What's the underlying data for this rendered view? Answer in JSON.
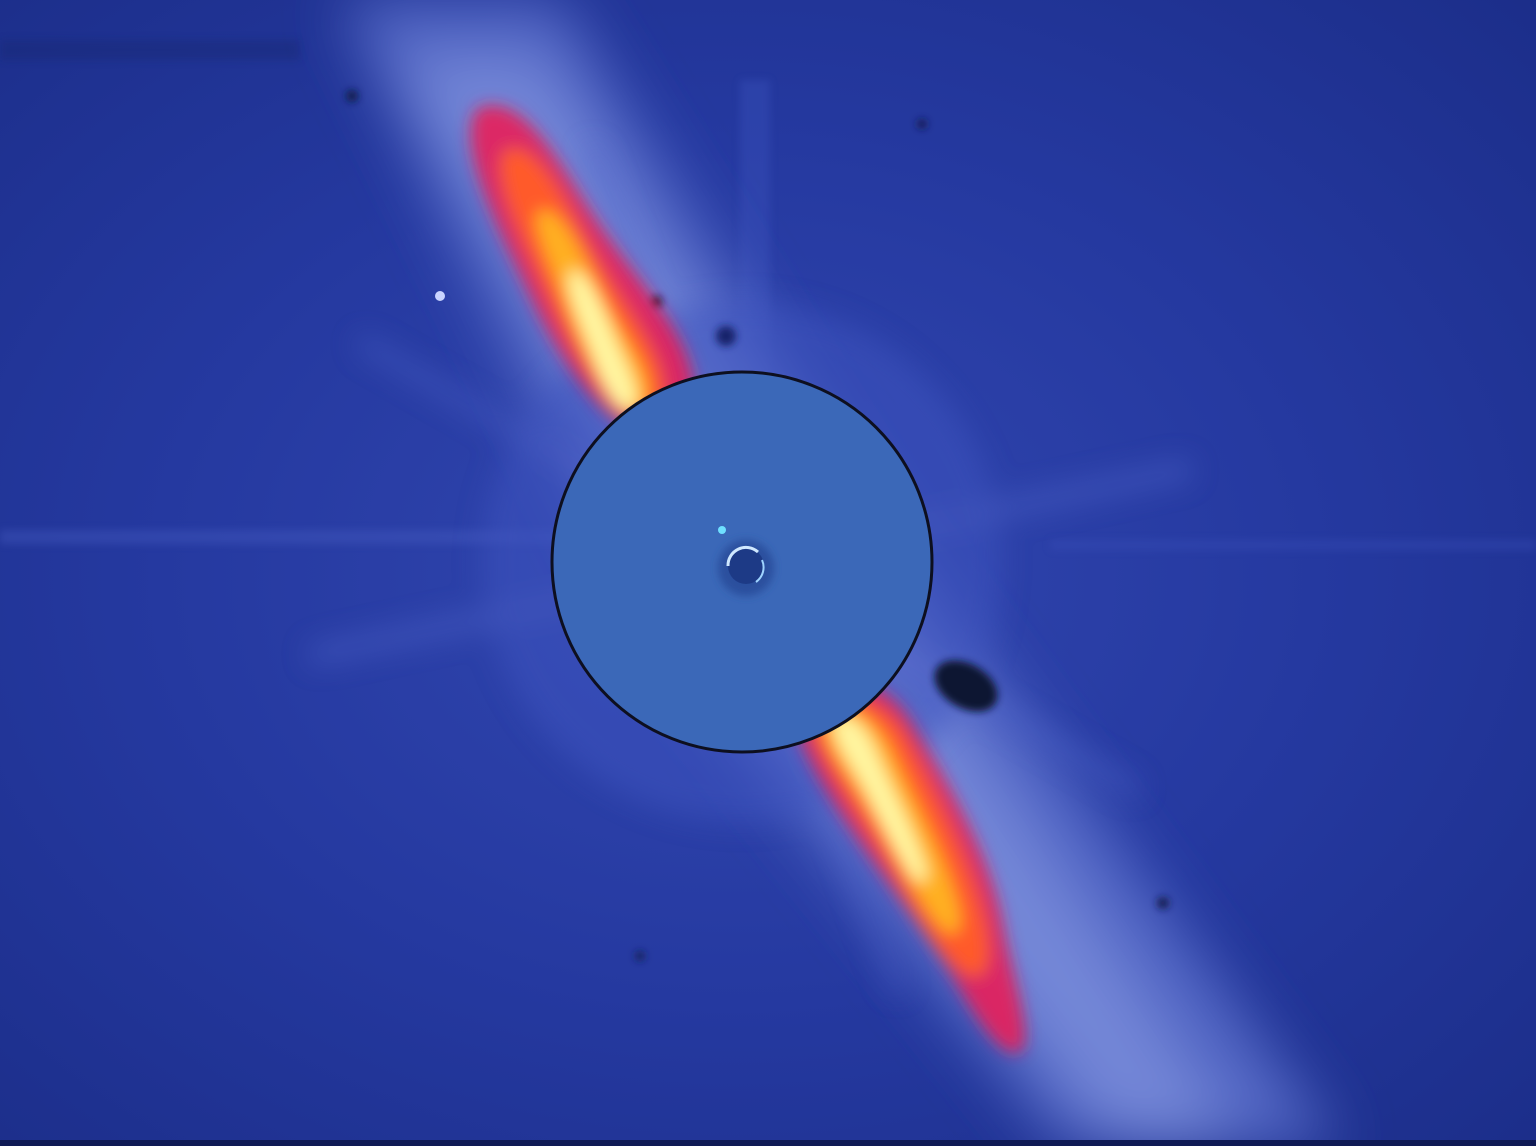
{
  "image": {
    "subject": "debris-disk",
    "palette": {
      "background_dark": "#1a2c84",
      "background": "#2338a0",
      "disk_haze": "#6f82d6",
      "disk_haze_light": "#93a3e4",
      "mask_fill": "#3b68b8",
      "mask_edge": "#0d0f1f",
      "hot_outer": "#e8205a",
      "hot_mid": "#ff5a2a",
      "hot_inner": "#ffb020",
      "hot_core": "#fff6a0",
      "companion_point": "#6fe0ff"
    },
    "elements": [
      {
        "name": "coronagraph-mask"
      },
      {
        "name": "disk-arm-upper"
      },
      {
        "name": "disk-arm-lower"
      },
      {
        "name": "companion-point"
      },
      {
        "name": "inner-ring"
      }
    ]
  }
}
